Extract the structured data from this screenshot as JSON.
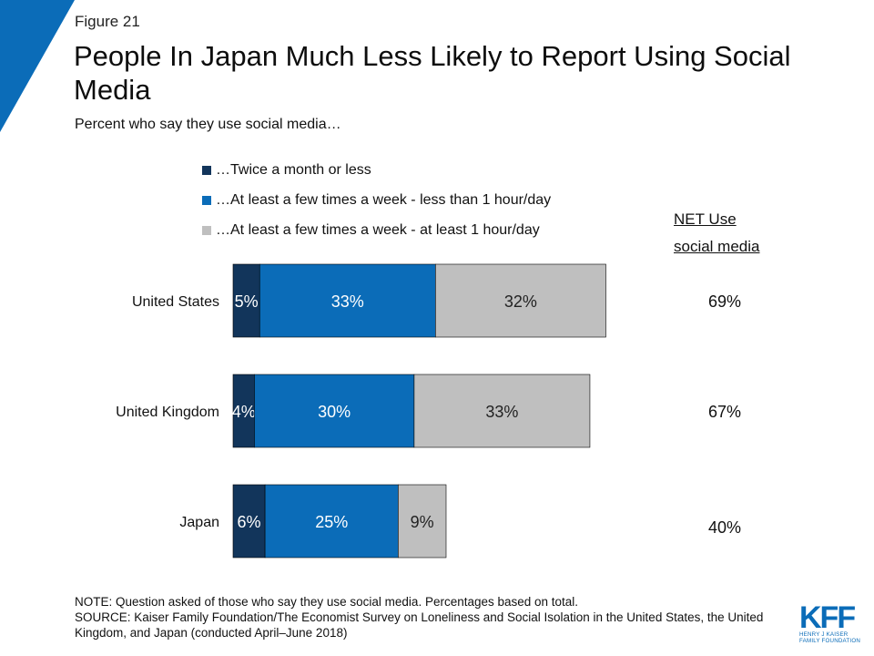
{
  "figure_label": "Figure 21",
  "title": "People In Japan Much Less Likely to Report Using Social Media",
  "subtitle": "Percent who say they use social media…",
  "net_header": [
    "NET Use",
    "social media"
  ],
  "notes": {
    "note": "NOTE: Question asked of those who say they use social media. Percentages based on total.",
    "source": "SOURCE: Kaiser Family Foundation/The Economist Survey on Loneliness and Social Isolation in the United States, the United Kingdom, and Japan (conducted April–June 2018)"
  },
  "logo": {
    "mark": "KFF",
    "line1": "HENRY J KAISER",
    "line2": "FAMILY FOUNDATION"
  },
  "colors": {
    "accent": "#0B6CB8",
    "dark": "#12355B",
    "mid": "#0B6CB8",
    "light": "#BFBFBF"
  },
  "chart_data": {
    "type": "bar",
    "orientation": "horizontal",
    "stacked": true,
    "categories": [
      "United States",
      "United Kingdom",
      "Japan"
    ],
    "series": [
      {
        "name": "…Twice a month or less",
        "color": "#12355B",
        "values": [
          5,
          4,
          6
        ]
      },
      {
        "name": "…At least a few times a week - less than 1 hour/day",
        "color": "#0B6CB8",
        "values": [
          33,
          30,
          25
        ]
      },
      {
        "name": "…At least a few times a week - at least 1 hour/day",
        "color": "#BFBFBF",
        "values": [
          32,
          33,
          9
        ]
      }
    ],
    "net": [
      "69%",
      "67%",
      "40%"
    ],
    "value_suffix": "%",
    "legend_position": "top",
    "grid": false
  }
}
